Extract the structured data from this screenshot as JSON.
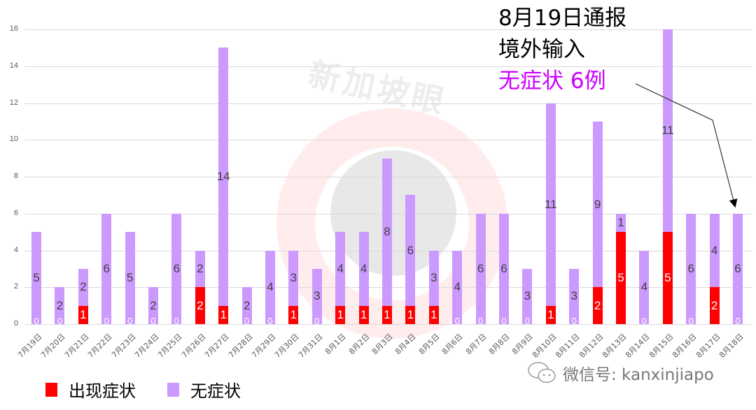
{
  "chart_data": {
    "type": "bar",
    "stacked": true,
    "title": "",
    "xlabel": "",
    "ylabel": "",
    "ylim": [
      0,
      16
    ],
    "yticks": [
      0,
      2,
      4,
      6,
      8,
      10,
      12,
      14,
      16
    ],
    "grid": true,
    "legend_position": "bottom-left",
    "categories": [
      "7月19日",
      "7月20日",
      "7月21日",
      "7月22日",
      "7月23日",
      "7月24日",
      "7月25日",
      "7月26日",
      "7月27日",
      "7月28日",
      "7月29日",
      "7月30日",
      "7月31日",
      "8月1日",
      "8月2日",
      "8月3日",
      "8月4日",
      "8月5日",
      "8月6日",
      "8月7日",
      "8月8日",
      "8月9日",
      "8月10日",
      "8月11日",
      "8月12日",
      "8月13日",
      "8月14日",
      "8月15日",
      "8月16日",
      "8月17日",
      "8月18日"
    ],
    "series": [
      {
        "name": "出现症状",
        "color": "#ff0000",
        "values": [
          0,
          0,
          1,
          0,
          0,
          0,
          0,
          2,
          1,
          0,
          0,
          1,
          0,
          1,
          1,
          1,
          1,
          1,
          0,
          0,
          0,
          0,
          1,
          0,
          2,
          5,
          0,
          5,
          0,
          2,
          0
        ]
      },
      {
        "name": "无症状",
        "color": "#cc99ff",
        "values": [
          5,
          2,
          2,
          6,
          5,
          2,
          6,
          2,
          14,
          2,
          4,
          3,
          3,
          4,
          4,
          8,
          6,
          3,
          4,
          6,
          6,
          3,
          11,
          3,
          9,
          1,
          4,
          11,
          6,
          4,
          6
        ]
      }
    ],
    "annotations": [
      {
        "text": "8月19日通报 境外输入 无症状 6例",
        "arrow_to": "8月18日"
      }
    ]
  },
  "annotation": {
    "line1": "8月19日通报",
    "line2": "境外输入",
    "line3": "无症状 6例"
  },
  "legend": {
    "items": [
      {
        "label": "出现症状",
        "color": "#ff0000"
      },
      {
        "label": "无症状",
        "color": "#cc99ff"
      }
    ]
  },
  "watermark": {
    "brand": "新加坡眼",
    "wechat": "微信号: kanxinjiapo"
  }
}
